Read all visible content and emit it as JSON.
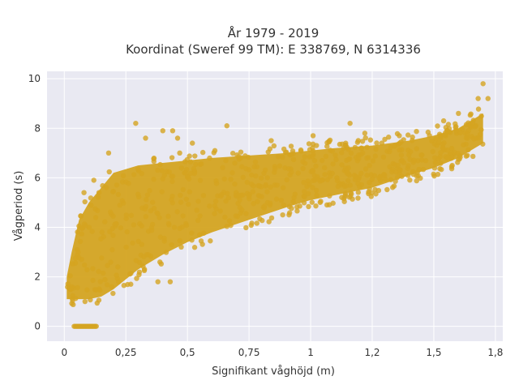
{
  "chart_data": {
    "type": "scatter",
    "title_line1": "År 1979 - 2019",
    "title_line2": "Koordinat (Sweref 99 TM): E 338769, N 6314336",
    "xlabel": "Signifikant våghöjd (m)",
    "ylabel": "Vågperiod (s)",
    "xlim": [
      -0.07,
      1.78
    ],
    "ylim": [
      -0.6,
      10.3
    ],
    "x_ticks": [
      0,
      0.25,
      0.5,
      0.75,
      1,
      1.25,
      1.5,
      1.75
    ],
    "x_tick_labels": [
      "0",
      "0,25",
      "0,5",
      "0,75",
      "1",
      "1,2",
      "1,5",
      "1,8"
    ],
    "y_ticks": [
      0,
      2,
      4,
      6,
      8,
      10
    ],
    "y_tick_labels": [
      "0",
      "2",
      "4",
      "6",
      "8",
      "10"
    ],
    "grid": true,
    "marker_color": "#d4a421",
    "background_color": "#e9e9f2",
    "density_band": {
      "x": [
        0.01,
        0.03,
        0.06,
        0.1,
        0.15,
        0.2,
        0.3,
        0.4,
        0.5,
        0.6,
        0.75,
        0.9,
        1.0,
        1.1,
        1.25,
        1.4,
        1.5,
        1.6,
        1.7
      ],
      "y_low": [
        1.1,
        1.1,
        1.1,
        1.1,
        1.2,
        1.5,
        2.3,
        2.9,
        3.4,
        3.8,
        4.3,
        4.8,
        5.1,
        5.3,
        5.6,
        6.1,
        6.4,
        6.8,
        7.4
      ],
      "y_high": [
        2.0,
        3.0,
        4.3,
        5.0,
        5.6,
        6.2,
        6.5,
        6.6,
        6.7,
        6.8,
        6.9,
        7.0,
        7.1,
        7.2,
        7.3,
        7.5,
        7.7,
        8.0,
        8.6
      ]
    },
    "zero_period_points": {
      "x_range": [
        0.04,
        0.13
      ],
      "y": 0
    },
    "outliers": [
      {
        "x": 0.29,
        "y": 8.2
      },
      {
        "x": 0.33,
        "y": 7.6
      },
      {
        "x": 0.4,
        "y": 7.9
      },
      {
        "x": 0.44,
        "y": 7.9
      },
      {
        "x": 0.46,
        "y": 7.6
      },
      {
        "x": 0.52,
        "y": 7.4
      },
      {
        "x": 0.66,
        "y": 8.1
      },
      {
        "x": 0.84,
        "y": 7.5
      },
      {
        "x": 1.01,
        "y": 7.7
      },
      {
        "x": 1.16,
        "y": 8.2
      },
      {
        "x": 1.22,
        "y": 7.8
      },
      {
        "x": 1.36,
        "y": 7.7
      },
      {
        "x": 1.54,
        "y": 8.3
      },
      {
        "x": 1.6,
        "y": 8.6
      },
      {
        "x": 1.68,
        "y": 9.2
      },
      {
        "x": 1.7,
        "y": 9.8
      },
      {
        "x": 1.72,
        "y": 9.2
      },
      {
        "x": 0.22,
        "y": 1.8
      },
      {
        "x": 0.27,
        "y": 1.7
      },
      {
        "x": 0.43,
        "y": 1.8
      },
      {
        "x": 0.38,
        "y": 1.8
      },
      {
        "x": 0.08,
        "y": 5.4
      },
      {
        "x": 0.12,
        "y": 5.9
      },
      {
        "x": 0.18,
        "y": 7.0
      }
    ]
  }
}
